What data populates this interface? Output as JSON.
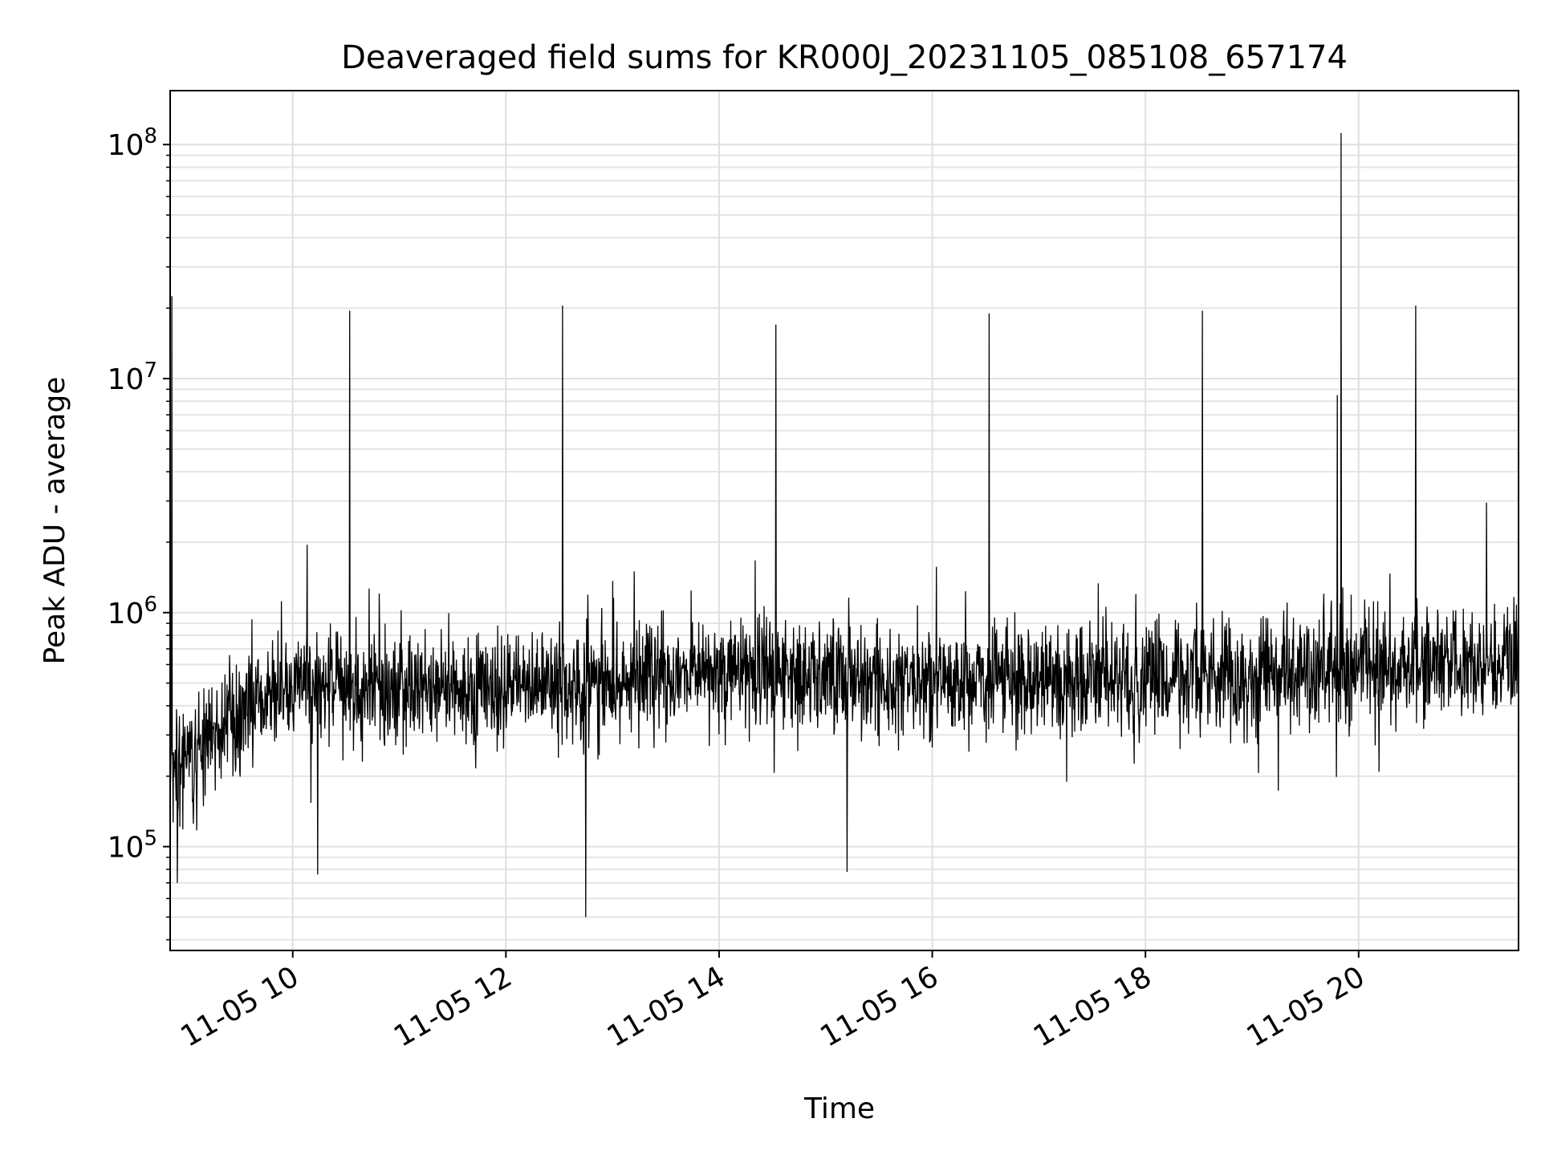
{
  "chart_data": {
    "type": "line",
    "title": "Deaveraged field sums for KR000J_20231105_085108_657174",
    "xlabel": "Time",
    "ylabel": "Peak ADU - average",
    "yscale": "log",
    "grid": "on",
    "legend": "none",
    "xlim": [
      "2023-11-05 08:51",
      "2023-11-05 21:30"
    ],
    "ylim": [
      36000,
      170000000
    ],
    "x_ticks": [
      {
        "value": "2023-11-05 10:00",
        "label": "11-05 10"
      },
      {
        "value": "2023-11-05 12:00",
        "label": "11-05 12"
      },
      {
        "value": "2023-11-05 14:00",
        "label": "11-05 14"
      },
      {
        "value": "2023-11-05 16:00",
        "label": "11-05 16"
      },
      {
        "value": "2023-11-05 18:00",
        "label": "11-05 18"
      },
      {
        "value": "2023-11-05 20:00",
        "label": "11-05 20"
      }
    ],
    "y_ticks": [
      {
        "value": 100000,
        "base": "10",
        "exp": "5"
      },
      {
        "value": 1000000,
        "base": "10",
        "exp": "6"
      },
      {
        "value": 10000000,
        "base": "10",
        "exp": "7"
      },
      {
        "value": 100000000,
        "base": "10",
        "exp": "8"
      }
    ],
    "series": [
      {
        "color": "#000000",
        "baseline": {
          "x": [
            "2023-11-05 08:51",
            "2023-11-05 09:30",
            "2023-11-05 10:00",
            "2023-11-05 12:00",
            "2023-11-05 14:00",
            "2023-11-05 16:00",
            "2023-11-05 18:00",
            "2023-11-05 20:00",
            "2023-11-05 21:30"
          ],
          "y": [
            200000,
            380000,
            480000,
            480000,
            560000,
            500000,
            520000,
            580000,
            620000
          ]
        },
        "spikes": [
          {
            "x": "2023-11-05 08:52",
            "y": 22500000
          },
          {
            "x": "2023-11-05 10:32",
            "y": 19500000
          },
          {
            "x": "2023-11-05 12:32",
            "y": 20500000
          },
          {
            "x": "2023-11-05 14:32",
            "y": 17000000
          },
          {
            "x": "2023-11-05 16:32",
            "y": 19000000
          },
          {
            "x": "2023-11-05 18:32",
            "y": 19500000
          },
          {
            "x": "2023-11-05 19:48",
            "y": 8500000
          },
          {
            "x": "2023-11-05 19:50",
            "y": 112000000
          },
          {
            "x": "2023-11-05 20:32",
            "y": 20500000
          },
          {
            "x": "2023-11-05 10:08",
            "y": 1950000
          },
          {
            "x": "2023-11-05 21:12",
            "y": 2950000
          },
          {
            "x": "2023-11-05 12:45",
            "y": 50000
          },
          {
            "x": "2023-11-05 15:12",
            "y": 78000
          },
          {
            "x": "2023-11-05 10:14",
            "y": 76000
          },
          {
            "x": "2023-11-05 08:55",
            "y": 70000
          }
        ]
      }
    ]
  }
}
